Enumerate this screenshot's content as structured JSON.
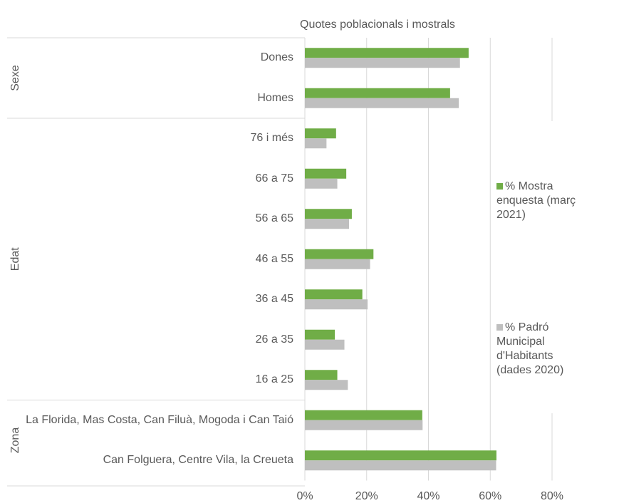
{
  "chart_data": {
    "type": "bar",
    "orientation": "horizontal",
    "title": "Quotes poblacionals i mostrals",
    "groups": [
      {
        "name": "Sexe",
        "categories": [
          "Dones",
          "Homes"
        ]
      },
      {
        "name": "Edat",
        "categories": [
          "76 i més",
          "66 a 75",
          "56 a 65",
          "46 a 55",
          "36 a 45",
          "26 a 35",
          "16 a 25"
        ]
      },
      {
        "name": "Zona",
        "categories": [
          "La Florida, Mas Costa, Can Filuà, Mogoda i Can Taió",
          "Can Folguera, Centre Vila, la Creueta"
        ]
      }
    ],
    "series": [
      {
        "name": "% Mostra enquesta (març 2021)",
        "color": "#70ad47",
        "values": [
          53,
          47,
          10.1,
          13.4,
          15.2,
          22.2,
          18.6,
          9.7,
          10.5,
          38,
          62
        ]
      },
      {
        "name": "% Padró Municipal d'Habitants (dades 2020)",
        "color": "#bfbfbf",
        "values": [
          50.2,
          49.8,
          7,
          10.5,
          14.3,
          21.1,
          20.3,
          12.8,
          13.9,
          38.1,
          61.9
        ]
      }
    ],
    "xlim": [
      0,
      80
    ],
    "xticks": [
      {
        "value": 0,
        "label": "0%"
      },
      {
        "value": 20,
        "label": "20%"
      },
      {
        "value": 40,
        "label": "40%"
      },
      {
        "value": 60,
        "label": "60%"
      },
      {
        "value": 80,
        "label": "80%"
      }
    ],
    "grid": true,
    "legend": "right"
  }
}
